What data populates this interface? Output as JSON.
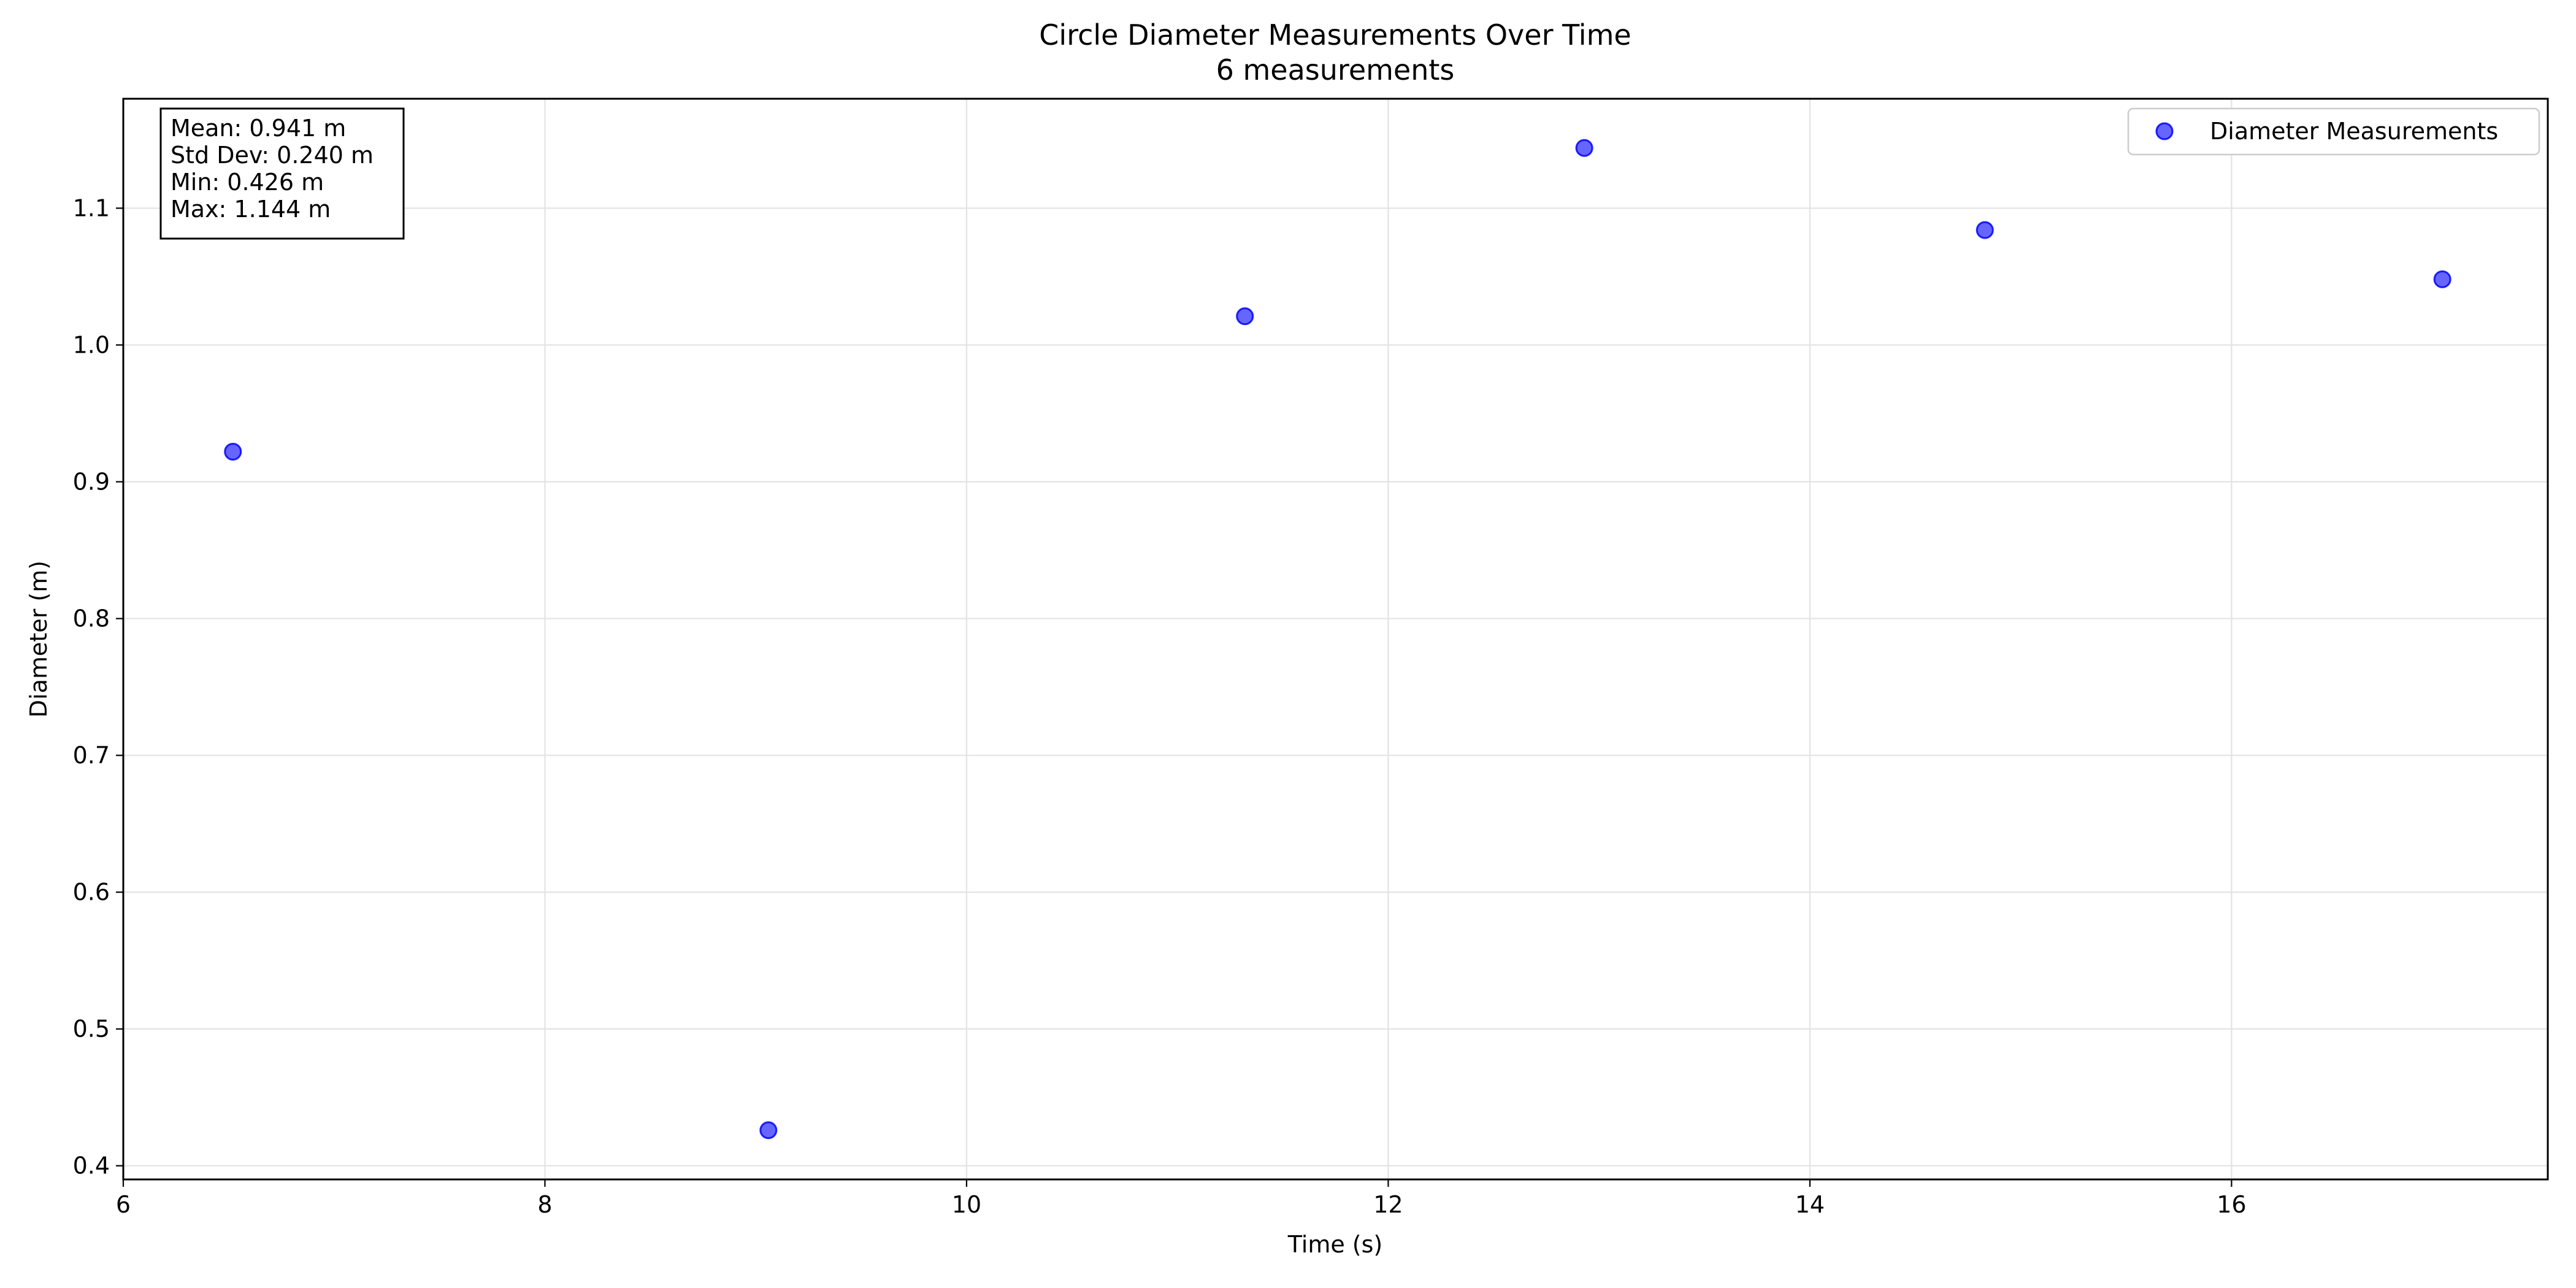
{
  "chart_data": {
    "type": "scatter",
    "title": "Circle Diameter Measurements Over Time",
    "subtitle": "6 measurements",
    "xlabel": "Time (s)",
    "ylabel": "Diameter (m)",
    "xlim": [
      6.0,
      17.5
    ],
    "ylim": [
      0.39,
      1.18
    ],
    "x_ticks": [
      6,
      8,
      10,
      12,
      14,
      16
    ],
    "x_tick_labels": [
      "6",
      "8",
      "10",
      "12",
      "14",
      "16"
    ],
    "y_ticks": [
      0.4,
      0.5,
      0.6,
      0.7,
      0.8,
      0.9,
      1.0,
      1.1
    ],
    "y_tick_labels": [
      "0.4",
      "0.5",
      "0.6",
      "0.7",
      "0.8",
      "0.9",
      "1.0",
      "1.1"
    ],
    "grid": true,
    "legend_position": "top-right",
    "series": [
      {
        "name": "Diameter Measurements",
        "color": "#0000ff",
        "x": [
          6.52,
          9.06,
          11.32,
          12.93,
          14.83,
          17.0
        ],
        "y": [
          0.922,
          0.426,
          1.021,
          1.144,
          1.084,
          1.048
        ]
      }
    ],
    "stats_box": {
      "position": "top-left",
      "lines": [
        "Mean: 0.941 m",
        "Std Dev: 0.240 m",
        "Min: 0.426 m",
        "Max: 1.144 m"
      ]
    }
  }
}
